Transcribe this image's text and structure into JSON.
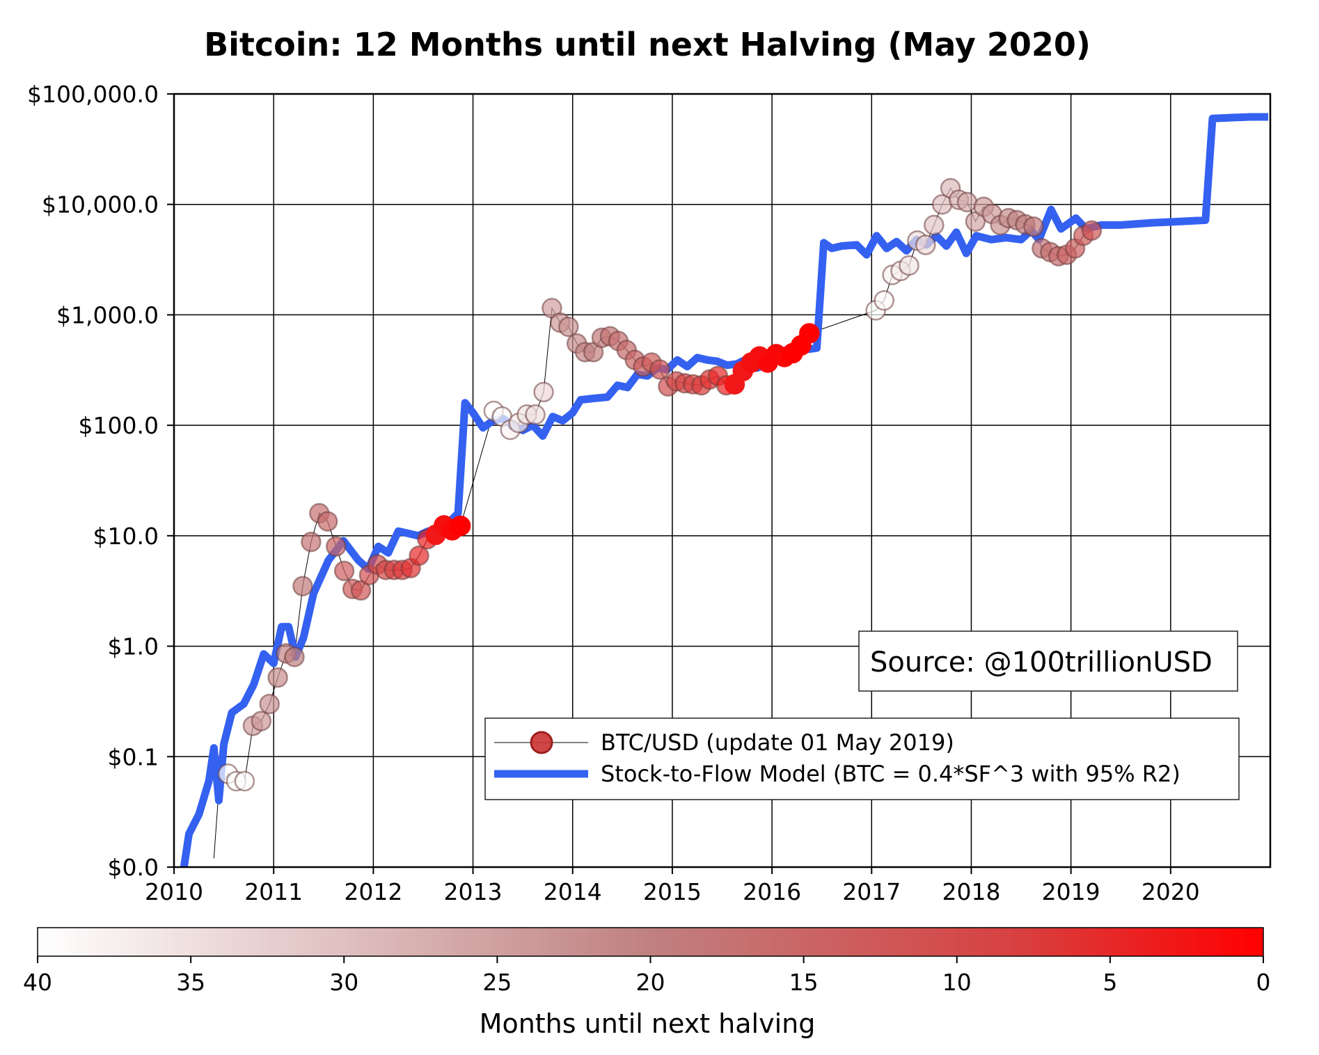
{
  "chart_data": {
    "type": "scatter",
    "title": "Bitcoin: 12 Months until next Halving (May 2020)",
    "y_scale": "log",
    "y_tick_labels": [
      "$0.0",
      "$0.1",
      "$1.0",
      "$10.0",
      "$100.0",
      "$1,000.0",
      "$10,000.0",
      "$100,000.0"
    ],
    "y_tick_values": [
      0.01,
      0.1,
      1,
      10,
      100,
      1000,
      10000,
      100000
    ],
    "ylim": [
      0.01,
      100000
    ],
    "x_tick_labels": [
      "2010",
      "2011",
      "2012",
      "2013",
      "2014",
      "2015",
      "2016",
      "2017",
      "2018",
      "2019",
      "2020"
    ],
    "xlim": [
      2010.0,
      2021.0
    ],
    "grid": true,
    "legend_placement": "lower-right",
    "source_annotation": "Source: @100trillionUSD",
    "colors": {
      "model": "#3461f0",
      "price_line": "#000000",
      "dot_max": "#ff0000",
      "dot_min": "#ffffff"
    },
    "series": [
      {
        "name": "BTC/USD (update 01 May 2019)",
        "kind": "price",
        "color_value_name": "months until next halving",
        "points": [
          {
            "date": "2010-07",
            "price": 0.07,
            "months": 40
          },
          {
            "date": "2010-08",
            "price": 0.06,
            "months": 40
          },
          {
            "date": "2010-09",
            "price": 0.06,
            "months": 40
          },
          {
            "date": "2010-10",
            "price": 0.19,
            "months": 25
          },
          {
            "date": "2010-11",
            "price": 0.21,
            "months": 24
          },
          {
            "date": "2010-12",
            "price": 0.3,
            "months": 23
          },
          {
            "date": "2011-01",
            "price": 0.52,
            "months": 22
          },
          {
            "date": "2011-02",
            "price": 0.86,
            "months": 21
          },
          {
            "date": "2011-03",
            "price": 0.8,
            "months": 20
          },
          {
            "date": "2011-04",
            "price": 3.5,
            "months": 19
          },
          {
            "date": "2011-05",
            "price": 8.8,
            "months": 18
          },
          {
            "date": "2011-06",
            "price": 16,
            "months": 17
          },
          {
            "date": "2011-07",
            "price": 13.5,
            "months": 16
          },
          {
            "date": "2011-08",
            "price": 8,
            "months": 15
          },
          {
            "date": "2011-09",
            "price": 4.8,
            "months": 14
          },
          {
            "date": "2011-10",
            "price": 3.3,
            "months": 13
          },
          {
            "date": "2011-11",
            "price": 3.2,
            "months": 12
          },
          {
            "date": "2011-12",
            "price": 4.4,
            "months": 11
          },
          {
            "date": "2012-01",
            "price": 5.5,
            "months": 10
          },
          {
            "date": "2012-02",
            "price": 4.9,
            "months": 9
          },
          {
            "date": "2012-03",
            "price": 4.9,
            "months": 8
          },
          {
            "date": "2012-04",
            "price": 4.9,
            "months": 7
          },
          {
            "date": "2012-05",
            "price": 5.1,
            "months": 6
          },
          {
            "date": "2012-06",
            "price": 6.6,
            "months": 5
          },
          {
            "date": "2012-07",
            "price": 9.3,
            "months": 4
          },
          {
            "date": "2012-08",
            "price": 10.2,
            "months": 3
          },
          {
            "date": "2012-09",
            "price": 12.4,
            "months": 2
          },
          {
            "date": "2012-10",
            "price": 11.2,
            "months": 1
          },
          {
            "date": "2012-11",
            "price": 12.3,
            "months": 0
          },
          {
            "date": "2013-03",
            "price": 135,
            "months": 40
          },
          {
            "date": "2013-04",
            "price": 120,
            "months": 39
          },
          {
            "date": "2013-05",
            "price": 91,
            "months": 38
          },
          {
            "date": "2013-06",
            "price": 105,
            "months": 37
          },
          {
            "date": "2013-07",
            "price": 125,
            "months": 36
          },
          {
            "date": "2013-08",
            "price": 125,
            "months": 35
          },
          {
            "date": "2013-09",
            "price": 200,
            "months": 34
          },
          {
            "date": "2013-10",
            "price": 1150,
            "months": 25
          },
          {
            "date": "2013-11",
            "price": 850,
            "months": 24
          },
          {
            "date": "2013-12",
            "price": 780,
            "months": 23
          },
          {
            "date": "2014-01",
            "price": 550,
            "months": 22
          },
          {
            "date": "2014-02",
            "price": 460,
            "months": 21
          },
          {
            "date": "2014-03",
            "price": 460,
            "months": 20
          },
          {
            "date": "2014-04",
            "price": 620,
            "months": 19
          },
          {
            "date": "2014-05",
            "price": 640,
            "months": 18
          },
          {
            "date": "2014-06",
            "price": 580,
            "months": 17
          },
          {
            "date": "2014-07",
            "price": 480,
            "months": 16
          },
          {
            "date": "2014-08",
            "price": 390,
            "months": 15
          },
          {
            "date": "2014-09",
            "price": 340,
            "months": 14
          },
          {
            "date": "2014-10",
            "price": 370,
            "months": 13
          },
          {
            "date": "2014-11",
            "price": 320,
            "months": 12
          },
          {
            "date": "2014-12",
            "price": 225,
            "months": 11
          },
          {
            "date": "2015-01",
            "price": 250,
            "months": 10
          },
          {
            "date": "2015-02",
            "price": 240,
            "months": 9
          },
          {
            "date": "2015-03",
            "price": 235,
            "months": 8
          },
          {
            "date": "2015-04",
            "price": 230,
            "months": 7
          },
          {
            "date": "2015-05",
            "price": 260,
            "months": 6
          },
          {
            "date": "2015-06",
            "price": 280,
            "months": 5
          },
          {
            "date": "2015-07",
            "price": 230,
            "months": 4
          },
          {
            "date": "2015-08",
            "price": 235,
            "months": 3
          },
          {
            "date": "2015-09",
            "price": 310,
            "months": 3
          },
          {
            "date": "2015-10",
            "price": 370,
            "months": 2
          },
          {
            "date": "2015-11",
            "price": 420,
            "months": 2
          },
          {
            "date": "2015-12",
            "price": 370,
            "months": 1
          },
          {
            "date": "2016-01",
            "price": 440,
            "months": 1
          },
          {
            "date": "2016-02",
            "price": 415,
            "months": 1
          },
          {
            "date": "2016-03",
            "price": 450,
            "months": 0
          },
          {
            "date": "2016-04",
            "price": 530,
            "months": 0
          },
          {
            "date": "2016-05",
            "price": 680,
            "months": 0
          },
          {
            "date": "2017-01",
            "price": 1100,
            "months": 40
          },
          {
            "date": "2017-02",
            "price": 1350,
            "months": 39
          },
          {
            "date": "2017-03",
            "price": 2300,
            "months": 38
          },
          {
            "date": "2017-04",
            "price": 2500,
            "months": 37
          },
          {
            "date": "2017-05",
            "price": 2800,
            "months": 36
          },
          {
            "date": "2017-06",
            "price": 4700,
            "months": 35
          },
          {
            "date": "2017-07",
            "price": 4300,
            "months": 34
          },
          {
            "date": "2017-08",
            "price": 6500,
            "months": 31
          },
          {
            "date": "2017-09",
            "price": 10000,
            "months": 30
          },
          {
            "date": "2017-10",
            "price": 14000,
            "months": 29
          },
          {
            "date": "2017-11",
            "price": 11000,
            "months": 28
          },
          {
            "date": "2017-12",
            "price": 10500,
            "months": 27
          },
          {
            "date": "2018-01",
            "price": 7000,
            "months": 26
          },
          {
            "date": "2018-02",
            "price": 9500,
            "months": 25
          },
          {
            "date": "2018-03",
            "price": 8200,
            "months": 24
          },
          {
            "date": "2018-04",
            "price": 6500,
            "months": 23
          },
          {
            "date": "2018-05",
            "price": 7500,
            "months": 22
          },
          {
            "date": "2018-06",
            "price": 7200,
            "months": 21
          },
          {
            "date": "2018-07",
            "price": 6600,
            "months": 20
          },
          {
            "date": "2018-08",
            "price": 6300,
            "months": 19
          },
          {
            "date": "2018-09",
            "price": 4000,
            "months": 18
          },
          {
            "date": "2018-10",
            "price": 3700,
            "months": 17
          },
          {
            "date": "2018-11",
            "price": 3400,
            "months": 16
          },
          {
            "date": "2018-12",
            "price": 3500,
            "months": 15
          },
          {
            "date": "2019-01",
            "price": 4000,
            "months": 14
          },
          {
            "date": "2019-02",
            "price": 5200,
            "months": 13
          },
          {
            "date": "2019-03",
            "price": 5800,
            "months": 12
          }
        ]
      },
      {
        "name": "Stock-to-Flow Model (BTC = 0.4*SF^3 with 95% R2)",
        "kind": "model",
        "points": [
          [
            2010.1,
            0.01
          ],
          [
            2010.15,
            0.02
          ],
          [
            2010.25,
            0.03
          ],
          [
            2010.35,
            0.06
          ],
          [
            2010.4,
            0.12
          ],
          [
            2010.45,
            0.04
          ],
          [
            2010.5,
            0.13
          ],
          [
            2010.58,
            0.25
          ],
          [
            2010.7,
            0.3
          ],
          [
            2010.8,
            0.45
          ],
          [
            2010.9,
            0.85
          ],
          [
            2011.0,
            0.7
          ],
          [
            2011.08,
            1.5
          ],
          [
            2011.15,
            1.5
          ],
          [
            2011.22,
            0.8
          ],
          [
            2011.3,
            1.2
          ],
          [
            2011.4,
            3
          ],
          [
            2011.55,
            6
          ],
          [
            2011.7,
            9
          ],
          [
            2011.85,
            6
          ],
          [
            2011.95,
            5
          ],
          [
            2012.05,
            8
          ],
          [
            2012.15,
            7
          ],
          [
            2012.25,
            11
          ],
          [
            2012.35,
            10.5
          ],
          [
            2012.45,
            10
          ],
          [
            2012.55,
            11
          ],
          [
            2012.65,
            11
          ],
          [
            2012.75,
            13
          ],
          [
            2012.85,
            16
          ],
          [
            2012.92,
            160
          ],
          [
            2013.0,
            130
          ],
          [
            2013.1,
            95
          ],
          [
            2013.2,
            110
          ],
          [
            2013.3,
            115
          ],
          [
            2013.4,
            100
          ],
          [
            2013.5,
            90
          ],
          [
            2013.6,
            100
          ],
          [
            2013.7,
            80
          ],
          [
            2013.8,
            120
          ],
          [
            2013.9,
            110
          ],
          [
            2014.0,
            130
          ],
          [
            2014.08,
            170
          ],
          [
            2014.2,
            175
          ],
          [
            2014.35,
            180
          ],
          [
            2014.45,
            230
          ],
          [
            2014.55,
            220
          ],
          [
            2014.65,
            290
          ],
          [
            2014.75,
            280
          ],
          [
            2014.85,
            330
          ],
          [
            2014.95,
            320
          ],
          [
            2015.05,
            390
          ],
          [
            2015.15,
            340
          ],
          [
            2015.25,
            410
          ],
          [
            2015.35,
            390
          ],
          [
            2015.45,
            380
          ],
          [
            2015.55,
            350
          ],
          [
            2015.65,
            360
          ],
          [
            2015.75,
            400
          ],
          [
            2015.85,
            330
          ],
          [
            2015.95,
            360
          ],
          [
            2016.05,
            420
          ],
          [
            2016.15,
            440
          ],
          [
            2016.3,
            480
          ],
          [
            2016.45,
            500
          ],
          [
            2016.52,
            4500
          ],
          [
            2016.6,
            4000
          ],
          [
            2016.7,
            4200
          ],
          [
            2016.85,
            4300
          ],
          [
            2016.95,
            3500
          ],
          [
            2017.05,
            5200
          ],
          [
            2017.15,
            4000
          ],
          [
            2017.25,
            4600
          ],
          [
            2017.35,
            3800
          ],
          [
            2017.45,
            4800
          ],
          [
            2017.55,
            4300
          ],
          [
            2017.65,
            5200
          ],
          [
            2017.75,
            4200
          ],
          [
            2017.85,
            5600
          ],
          [
            2017.95,
            3600
          ],
          [
            2018.05,
            5200
          ],
          [
            2018.2,
            4800
          ],
          [
            2018.35,
            5000
          ],
          [
            2018.5,
            4800
          ],
          [
            2018.6,
            5800
          ],
          [
            2018.68,
            4800
          ],
          [
            2018.8,
            9000
          ],
          [
            2018.9,
            6000
          ],
          [
            2019.05,
            7500
          ],
          [
            2019.15,
            6000
          ],
          [
            2019.3,
            6500
          ],
          [
            2019.5,
            6500
          ],
          [
            2019.8,
            6800
          ],
          [
            2020.1,
            7000
          ],
          [
            2020.35,
            7200
          ],
          [
            2020.42,
            60000
          ],
          [
            2020.6,
            61000
          ],
          [
            2020.8,
            62000
          ],
          [
            2020.98,
            62000
          ]
        ]
      }
    ],
    "colorbar": {
      "label": "Months until next halving",
      "ticks": [
        "40",
        "35",
        "30",
        "25",
        "20",
        "15",
        "10",
        "5",
        "0"
      ],
      "range": [
        40,
        0
      ]
    }
  }
}
